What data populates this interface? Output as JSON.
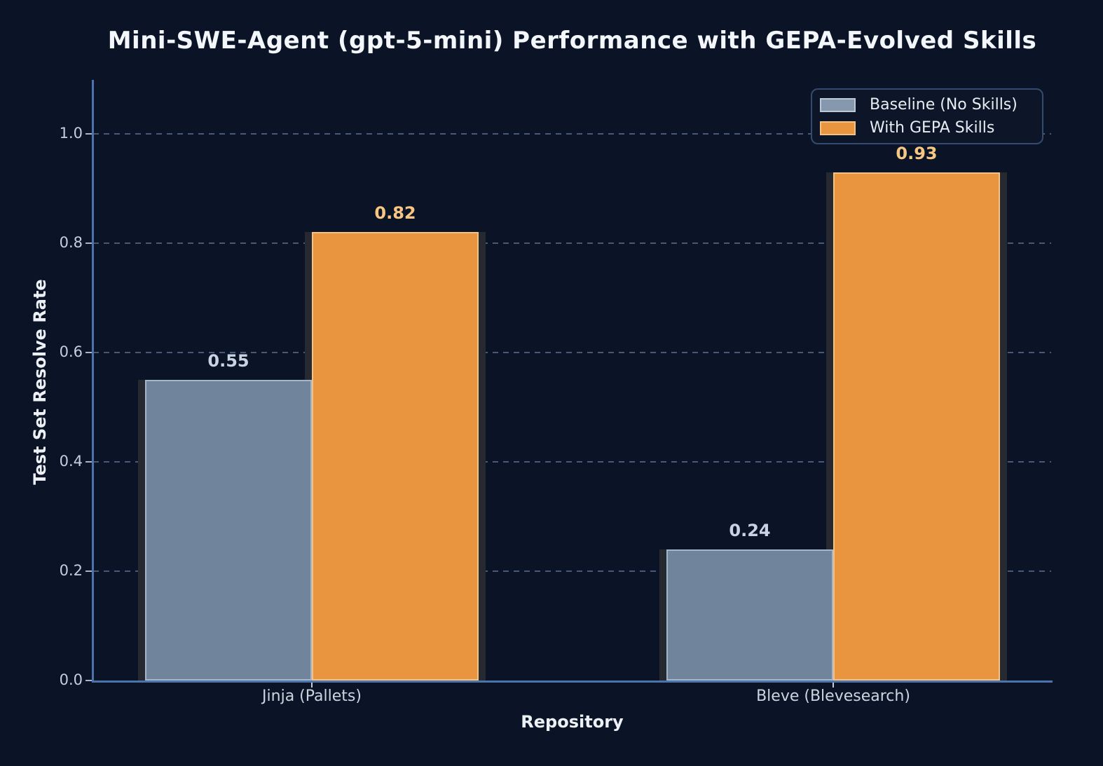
{
  "figure": {
    "title": "Mini-SWE-Agent (gpt-5-mini) Performance with GEPA-Evolved Skills",
    "background_color": "#0b1426",
    "spine_color": "#4d73ab",
    "grid_color": "rgba(132,158,199,0.5)",
    "shadow_color": "#262930"
  },
  "axes": {
    "xlabel": "Repository",
    "ylabel": "Test Set Resolve Rate",
    "ytick_labels": [
      "0.0",
      "0.2",
      "0.4",
      "0.6",
      "0.8",
      "1.0"
    ],
    "tick_label_color": "#c5cfdb"
  },
  "legend": {
    "items": [
      {
        "label": "Baseline (No Skills)",
        "fill": "#8598ae",
        "border": "#bac8d8"
      },
      {
        "label": "With GEPA Skills",
        "fill": "#e9953f",
        "border": "#f2c286"
      }
    ],
    "position": "upper right",
    "border_color": "#344a6e"
  },
  "chart_data": {
    "type": "bar",
    "title": "Mini-SWE-Agent (gpt-5-mini) Performance with GEPA-Evolved Skills",
    "xlabel": "Repository",
    "ylabel": "Test Set Resolve Rate",
    "categories": [
      "Jinja (Pallets)",
      "Bleve (Blevesearch)"
    ],
    "series": [
      {
        "name": "Baseline (No Skills)",
        "values": [
          0.55,
          0.24
        ],
        "fill": "#70849b",
        "edge": "#a3b6ca",
        "label_color": "#c8d4e2"
      },
      {
        "name": "With GEPA Skills",
        "values": [
          0.82,
          0.93
        ],
        "fill": "#e9953f",
        "edge": "#f2c286",
        "label_color": "#f6c682"
      }
    ],
    "value_label_format": "0.00",
    "yticks": [
      0.0,
      0.2,
      0.4,
      0.6,
      0.8,
      1.0
    ],
    "ylim": [
      0,
      1.1
    ],
    "grid": "horizontal dashed",
    "legend_position": "upper right",
    "bar_group_gap": 0
  }
}
